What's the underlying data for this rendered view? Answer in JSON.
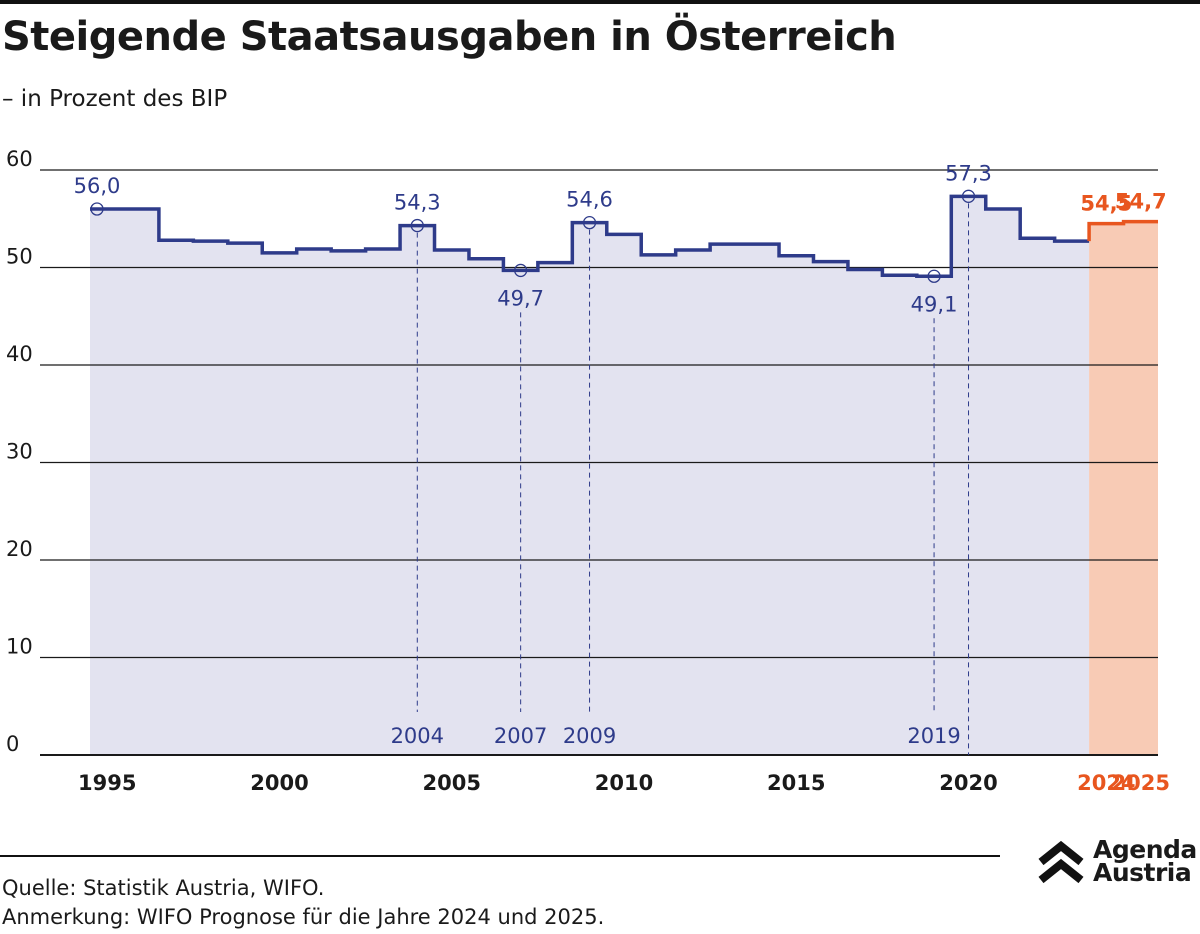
{
  "header": {
    "title": "Steigende Staatsausgaben in Österreich",
    "subtitle": "– in Prozent des BIP"
  },
  "footer": {
    "source": "Quelle: Statistik Austria, WIFO.",
    "note": "Anmerkung: WIFO Prognose für die Jahre 2024 und 2025."
  },
  "logo": {
    "line1": "Agenda",
    "line2": "Austria",
    "icon": "double-chevron-up-icon"
  },
  "colors": {
    "main": "#2e3b8a",
    "forecast": "#e8561f",
    "area_main": "#e3e3f0",
    "area_forecast": "#f8cbb5",
    "gridline": "#1a1a1a"
  },
  "chart_data": {
    "type": "line",
    "step": true,
    "title": "Steigende Staatsausgaben in Österreich",
    "subtitle": "– in Prozent des BIP",
    "xlabel": "",
    "ylabel": "",
    "ylim": [
      0,
      60
    ],
    "yticks": [
      0,
      10,
      20,
      30,
      40,
      50,
      60
    ],
    "xlim": [
      1995,
      2025
    ],
    "xticks": [
      {
        "year": 1995,
        "label": "1995",
        "forecast": false
      },
      {
        "year": 2000,
        "label": "2000",
        "forecast": false
      },
      {
        "year": 2005,
        "label": "2005",
        "forecast": false
      },
      {
        "year": 2010,
        "label": "2010",
        "forecast": false
      },
      {
        "year": 2015,
        "label": "2015",
        "forecast": false
      },
      {
        "year": 2020,
        "label": "2020",
        "forecast": false
      },
      {
        "year": 2024,
        "label": "2024",
        "forecast": true
      },
      {
        "year": 2025,
        "label": "2025",
        "forecast": true
      }
    ],
    "grid": true,
    "forecast_from": 2024,
    "series": [
      {
        "x": [
          1995,
          1996,
          1997,
          1998,
          1999,
          2000,
          2001,
          2002,
          2003,
          2004,
          2005,
          2006,
          2007,
          2008,
          2009,
          2010,
          2011,
          2012,
          2013,
          2014,
          2015,
          2016,
          2017,
          2018,
          2019,
          2020,
          2021,
          2022,
          2023,
          2024,
          2025
        ],
        "values": [
          56.0,
          56.0,
          52.8,
          52.7,
          52.5,
          51.5,
          51.9,
          51.7,
          51.9,
          54.3,
          51.8,
          50.9,
          49.7,
          50.5,
          54.6,
          53.4,
          51.3,
          51.8,
          52.4,
          52.4,
          51.2,
          50.6,
          49.8,
          49.2,
          49.1,
          57.3,
          56.0,
          53.0,
          52.7,
          54.5,
          54.7
        ]
      }
    ],
    "annotations": [
      {
        "year": 1995,
        "value": 56.0,
        "label": "56,0",
        "label_pos": "above",
        "year_label": "",
        "line": false
      },
      {
        "year": 2004,
        "value": 54.3,
        "label": "54,3",
        "label_pos": "above",
        "year_label": "2004",
        "line": true
      },
      {
        "year": 2007,
        "value": 49.7,
        "label": "49,7",
        "label_pos": "below",
        "year_label": "2007",
        "line": true
      },
      {
        "year": 2009,
        "value": 54.6,
        "label": "54,6",
        "label_pos": "above",
        "year_label": "2009",
        "line": true
      },
      {
        "year": 2019,
        "value": 49.1,
        "label": "49,1",
        "label_pos": "below",
        "year_label": "2019",
        "line": true
      },
      {
        "year": 2020,
        "value": 57.3,
        "label": "57,3",
        "label_pos": "above",
        "year_label": "",
        "line": true
      }
    ],
    "forecast_labels": [
      {
        "year": 2024,
        "value": 54.5,
        "label": "54,5"
      },
      {
        "year": 2025,
        "value": 54.7,
        "label": "54,7"
      }
    ]
  }
}
